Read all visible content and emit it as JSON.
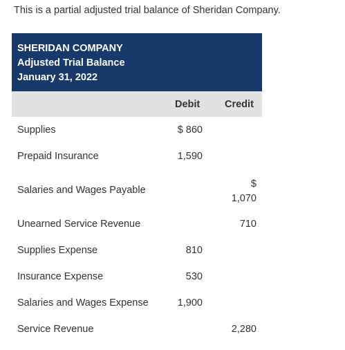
{
  "intro_text": "This is a partial adjusted trial balance of Sheridan Company.",
  "header": {
    "company": "SHERIDAN COMPANY",
    "report": "Adjusted Trial Balance",
    "date": "January 31, 2022",
    "background_color": "#173a6b"
  },
  "columns": {
    "debit": "Debit",
    "credit": "Credit"
  },
  "rows": [
    {
      "account": "Supplies",
      "debit": "$ 860",
      "credit": ""
    },
    {
      "account": "Prepaid Insurance",
      "debit": "1,590",
      "credit": ""
    },
    {
      "account": "Salaries and Wages Payable",
      "debit": "",
      "credit_symbol": "$",
      "credit": "1,070"
    },
    {
      "account": "Unearned Service Revenue",
      "debit": "",
      "credit": "710"
    },
    {
      "account": "Supplies Expense",
      "debit": "810",
      "credit": ""
    },
    {
      "account": "Insurance Expense",
      "debit": "530",
      "credit": ""
    },
    {
      "account": "Salaries and Wages Expense",
      "debit": "1,900",
      "credit": ""
    },
    {
      "account": "Service Revenue",
      "debit": "",
      "credit": "2,280"
    }
  ]
}
